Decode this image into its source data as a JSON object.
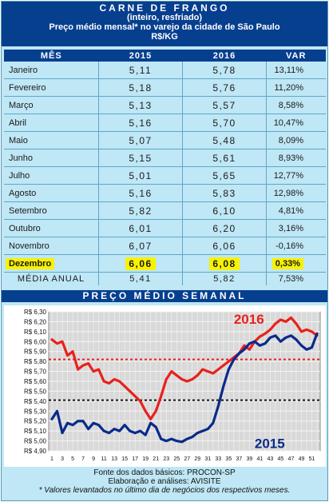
{
  "header": {
    "title": "CARNE DE FRANGO",
    "subtitle": "(inteiro, resfriado)",
    "description": "Preço médio mensal* no varejo da cidade de São Paulo",
    "unit": "R$/KG"
  },
  "table": {
    "columns": [
      "MÊS",
      "2015",
      "2016",
      "VAR"
    ],
    "rows": [
      {
        "month": "Janeiro",
        "y2015": "5,11",
        "y2016": "5,78",
        "var": "13,11%"
      },
      {
        "month": "Fevereiro",
        "y2015": "5,18",
        "y2016": "5,76",
        "var": "11,20%"
      },
      {
        "month": "Março",
        "y2015": "5,13",
        "y2016": "5,57",
        "var": "8,58%"
      },
      {
        "month": "Abril",
        "y2015": "5,16",
        "y2016": "5,70",
        "var": "10,47%"
      },
      {
        "month": "Maio",
        "y2015": "5,07",
        "y2016": "5,48",
        "var": "8,09%"
      },
      {
        "month": "Junho",
        "y2015": "5,15",
        "y2016": "5,61",
        "var": "8,93%"
      },
      {
        "month": "Julho",
        "y2015": "5,01",
        "y2016": "5,65",
        "var": "12,77%"
      },
      {
        "month": "Agosto",
        "y2015": "5,16",
        "y2016": "5,83",
        "var": "12,98%"
      },
      {
        "month": "Setembro",
        "y2015": "5,82",
        "y2016": "6,10",
        "var": "4,81%"
      },
      {
        "month": "Outubro",
        "y2015": "6,01",
        "y2016": "6,20",
        "var": "3,16%"
      },
      {
        "month": "Novembro",
        "y2015": "6,07",
        "y2016": "6,06",
        "var": "-0,16%"
      },
      {
        "month": "Dezembro",
        "y2015": "6,06",
        "y2016": "6,08",
        "var": "0,33%"
      }
    ],
    "average": {
      "label": "MÉDIA ANUAL",
      "y2015": "5,41",
      "y2016": "5,82",
      "var": "7,53%"
    }
  },
  "chart_section_title": "PREÇO MÉDIO SEMANAL",
  "chart_data": {
    "type": "line",
    "x": [
      1,
      2,
      3,
      4,
      5,
      6,
      7,
      8,
      9,
      10,
      11,
      12,
      13,
      14,
      15,
      16,
      17,
      18,
      19,
      20,
      21,
      22,
      23,
      24,
      25,
      26,
      27,
      28,
      29,
      30,
      31,
      32,
      33,
      34,
      35,
      36,
      37,
      38,
      39,
      40,
      41,
      42,
      43,
      44,
      45,
      46,
      47,
      48,
      49,
      50,
      51,
      52
    ],
    "x_tick_labels": [
      "1",
      "3",
      "5",
      "7",
      "9",
      "11",
      "13",
      "15",
      "17",
      "19",
      "21",
      "23",
      "25",
      "27",
      "29",
      "31",
      "33",
      "35",
      "37",
      "39",
      "41",
      "43",
      "45",
      "47",
      "49",
      "51"
    ],
    "y_tick_labels": [
      "R$ 4,90",
      "R$ 5,00",
      "R$ 5,10",
      "R$ 5,20",
      "R$ 5,30",
      "R$ 5,40",
      "R$ 5,50",
      "R$ 5,60",
      "R$ 5,70",
      "R$ 5,80",
      "R$ 5,90",
      "R$ 6,00",
      "R$ 6,10",
      "R$ 6,20",
      "R$ 6,30"
    ],
    "ylim": [
      4.9,
      6.3
    ],
    "grid": true,
    "series": [
      {
        "name": "2016",
        "color": "#e8211c",
        "values": [
          6.02,
          5.98,
          6.0,
          5.86,
          5.9,
          5.72,
          5.76,
          5.78,
          5.7,
          5.72,
          5.6,
          5.58,
          5.62,
          5.6,
          5.55,
          5.5,
          5.45,
          5.4,
          5.3,
          5.22,
          5.3,
          5.45,
          5.62,
          5.7,
          5.66,
          5.62,
          5.6,
          5.62,
          5.66,
          5.72,
          5.7,
          5.68,
          5.72,
          5.76,
          5.8,
          5.84,
          5.88,
          5.96,
          5.92,
          6.0,
          6.05,
          6.08,
          6.12,
          6.18,
          6.22,
          6.2,
          6.24,
          6.18,
          6.1,
          6.12,
          6.1,
          6.06
        ]
      },
      {
        "name": "2015",
        "color": "#0a2a8a",
        "values": [
          5.22,
          5.3,
          5.08,
          5.18,
          5.16,
          5.2,
          5.2,
          5.12,
          5.18,
          5.16,
          5.1,
          5.08,
          5.12,
          5.1,
          5.16,
          5.1,
          5.08,
          5.1,
          5.06,
          5.18,
          5.14,
          5.02,
          5.0,
          5.02,
          5.0,
          4.99,
          5.02,
          5.04,
          5.08,
          5.1,
          5.12,
          5.18,
          5.35,
          5.55,
          5.72,
          5.82,
          5.88,
          5.92,
          5.98,
          6.0,
          5.96,
          5.98,
          6.04,
          6.06,
          6.0,
          6.04,
          6.06,
          6.02,
          5.96,
          5.92,
          5.94,
          6.08
        ]
      }
    ],
    "reference_lines": [
      {
        "series": "2016",
        "value": 5.82,
        "color": "#e8211c"
      },
      {
        "series": "2015",
        "value": 5.41,
        "color": "#111111"
      }
    ]
  },
  "footer": {
    "line1": "Fonte dos dados básicos: PROCON-SP",
    "line2": "Elaboração e análises: AVISITE",
    "line3": "* Valores levantados no último dia de negócios dos respectivos meses."
  }
}
